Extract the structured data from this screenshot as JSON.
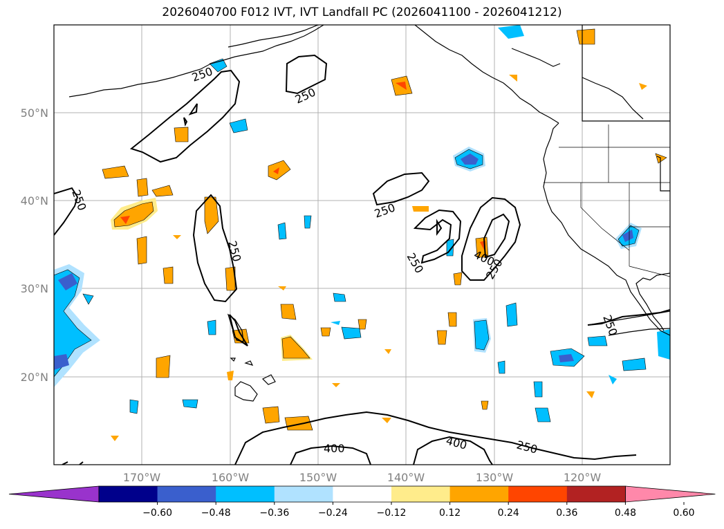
{
  "title": "2026040700 F012 IVT, IVT Landfall PC (2026041100 - 2026041212)",
  "axes": {
    "lat_labels": [
      "50°N",
      "40°N",
      "30°N",
      "20°N"
    ],
    "lon_labels": [
      "170°W",
      "160°W",
      "150°W",
      "140°W",
      "130°W",
      "120°W"
    ]
  },
  "contour_labels": {
    "c250_a": "250",
    "c250_b": "250",
    "c250_c": "250",
    "c250_d": "250",
    "c250_e": "250",
    "c250_f": "250",
    "c250_g": "250",
    "c250_h": "250",
    "c400_a": "400",
    "c400_b": "400",
    "c400_c": "400"
  },
  "colorbar": {
    "ticks": [
      "−0.60",
      "−0.48",
      "−0.36",
      "−0.24",
      "−0.12",
      "0.12",
      "0.24",
      "0.36",
      "0.48",
      "0.60"
    ],
    "colors": [
      "#9933cc",
      "#00008b",
      "#3a5fcd",
      "#00bfff",
      "#b0e2ff",
      "#ffffff",
      "#ffec8b",
      "#ffa500",
      "#ff4500",
      "#b22222",
      "#ff88aa"
    ]
  }
}
